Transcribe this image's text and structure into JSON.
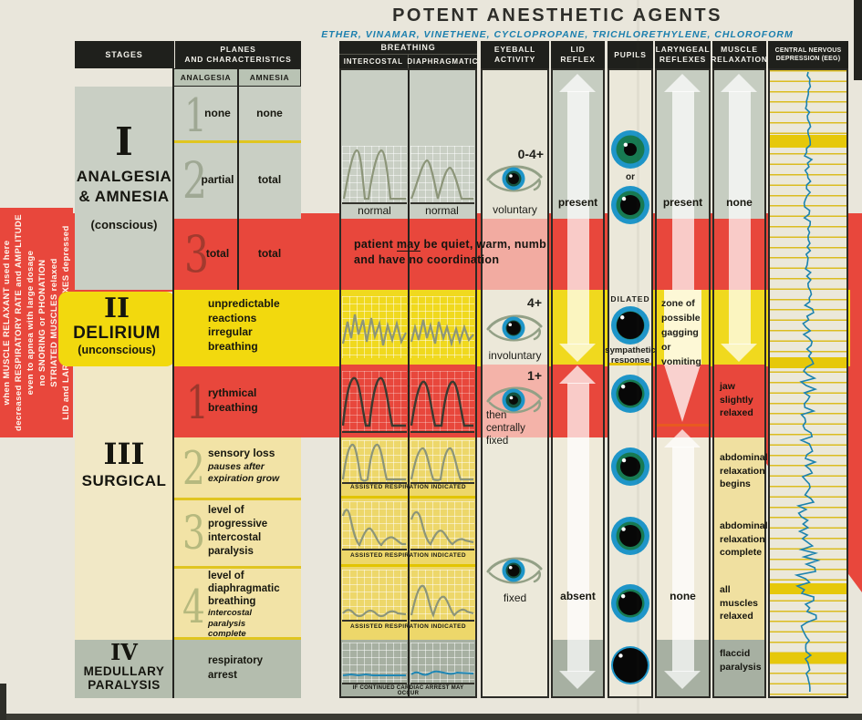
{
  "title": "POTENT ANESTHETIC AGENTS",
  "subtitle": "ETHER, VINAMAR, VINETHENE, CYCLOPROPANE, TRICHLORETHYLENE, CHLOROFORM",
  "sidebar": {
    "lines": [
      "when MUSCLE RELAXANT used here",
      "decreased RESPIRATORY RATE and AMPLITUDE",
      "even to apnea with large dosage",
      "no SNORING or PHONATION",
      "STRIATED MUSCLES relaxed",
      "LID and LARYNGEAL REFLEXES depressed"
    ]
  },
  "headers": {
    "stages": "STAGES",
    "planes": "PLANES\nAND CHARACTERISTICS",
    "breathing": "BREATHING",
    "intercostal": "INTERCOSTAL",
    "diaphragmatic": "DIAPHRAGMATIC",
    "eyeball": "EYEBALL\nACTIVITY",
    "lid": "LID\nREFLEX",
    "pupils": "PUPILS",
    "laryngeal": "LARYNGEAL\nREFLEXES",
    "muscle": "MUSCLE\nRELAXATION",
    "eeg": "CENTRAL NERVOUS\nDEPRESSION (EEG)",
    "analgesia": "ANALGESIA",
    "amnesia": "AMNESIA"
  },
  "stages": {
    "s1": {
      "numeral": "I",
      "name": "ANALGESIA\n& AMNESIA",
      "state": "(conscious)"
    },
    "s2": {
      "numeral": "II",
      "name": "DELIRIUM",
      "state": "(unconscious)"
    },
    "s3": {
      "numeral": "III",
      "name": "SURGICAL"
    },
    "s4": {
      "numeral": "IV",
      "name": "MEDULLARY\nPARALYSIS"
    }
  },
  "planes": {
    "p1": {
      "num": "1",
      "analgesia": "none",
      "amnesia": "none"
    },
    "p2": {
      "num": "2",
      "analgesia": "partial",
      "amnesia": "total"
    },
    "p3": {
      "num": "3",
      "analgesia": "total",
      "amnesia": "total"
    },
    "stage2": {
      "text": "unpredictable\nreactions\nirregular\nbreathing"
    },
    "s3p1": {
      "num": "1",
      "text": "rythmical\nbreathing"
    },
    "s3p2": {
      "num": "2",
      "text": "sensory loss",
      "note": "pauses after\nexpiration grow"
    },
    "s3p3": {
      "num": "3",
      "text": "level of\nprogressive\nintercostal\nparalysis"
    },
    "s3p4": {
      "num": "4",
      "text": "level of\ndiaphragmatic\nbreathing",
      "note": "intercostal\nparalysis\ncomplete"
    },
    "stage4": {
      "text": "respiratory\narrest"
    }
  },
  "breathing": {
    "normal_intercostal": "normal",
    "normal_diaphragmatic": "normal",
    "band_pre": "patient ",
    "band_may": "may",
    "band_post": " be quiet, warm, numb",
    "band_line2": "and have no coordination",
    "assisted": "ASSISTED RESPIRATION INDICATED",
    "cardiac": "IF CONTINUED CARDIAC ARREST MAY OCCUR"
  },
  "eyeball": {
    "grade1": "0-4+",
    "label1": "voluntary",
    "grade2": "4+",
    "label2": "involuntary",
    "grade3": "1+",
    "label3": "then centrally\nfixed",
    "label4": "fixed"
  },
  "lid": {
    "present": "present",
    "absent": "absent"
  },
  "pupils": {
    "or": "or",
    "dilated": "DILATED",
    "sympathetic": "sympathetic\nresponse"
  },
  "laryngeal": {
    "present": "present",
    "zone": "zone of\npossible\ngagging or\nvomiting",
    "none": "none"
  },
  "muscle": {
    "none": "none",
    "jaw": "jaw\nslightly\nrelaxed",
    "abd_begin": "abdominal\nrelaxation\nbegins",
    "abd_complete": "abdominal\nrelaxation\ncomplete",
    "all": "all\nmuscles\nrelaxed",
    "flaccid": "flaccid\nparalysis"
  },
  "colors": {
    "red": "#e8473c",
    "yellow": "#f2d90e",
    "pale_yellow": "#f0e0a0",
    "gray_green": "#c9cfc4",
    "header_dark": "#1f201c",
    "eeg_blue": "#1b82ae",
    "title_blue": "#1b7fae"
  }
}
